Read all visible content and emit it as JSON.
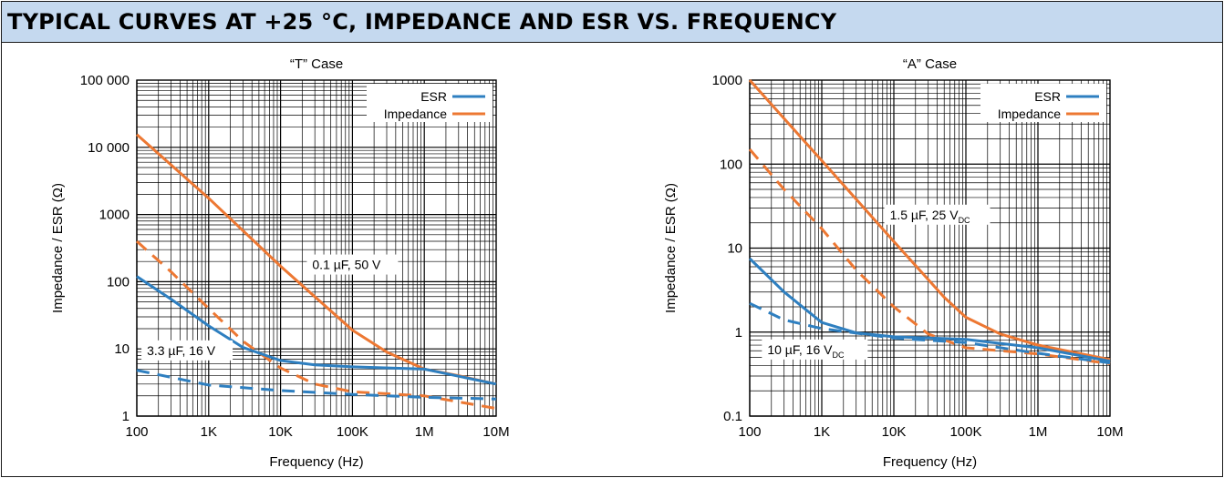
{
  "header": {
    "title": "TYPICAL CURVES AT +25 °C, IMPEDANCE AND ESR VS. FREQUENCY"
  },
  "colors": {
    "esr": "#2e7fc0",
    "impedance": "#ed7833",
    "banner": "#c5d9ef",
    "grid": "#000000"
  },
  "chart_data": [
    {
      "type": "line",
      "title": "“T” Case",
      "xlabel": "Frequency (Hz)",
      "ylabel": "Impedance / ESR (Ω)",
      "xscale": "log",
      "yscale": "log",
      "xlim": [
        100,
        10000000
      ],
      "ylim": [
        1,
        100000
      ],
      "grid": true,
      "legend_position": "top-right",
      "x_ticks": [
        100,
        1000,
        10000,
        100000,
        1000000,
        10000000
      ],
      "x_tick_labels": [
        "100",
        "1K",
        "10K",
        "100K",
        "1M",
        "10M"
      ],
      "y_ticks": [
        1,
        10,
        100,
        1000,
        10000,
        100000
      ],
      "y_tick_labels": [
        "1",
        "10",
        "100",
        "1000",
        "10 000",
        "100 000"
      ],
      "legend": [
        {
          "label": "ESR",
          "color": "#2e7fc0"
        },
        {
          "label": "Impedance",
          "color": "#ed7833"
        }
      ],
      "annotations": [
        {
          "text": "0.1 µF, 50 V",
          "x": 100000,
          "y": 180
        },
        {
          "text": "3.3 µF, 16 V",
          "x": 500,
          "y": 9.5
        }
      ],
      "series": [
        {
          "style": "solid",
          "color": "#ed7833",
          "x": [
            100,
            1000,
            10000,
            100000,
            300000,
            1000000,
            3000000,
            10000000
          ],
          "y": [
            15500,
            1750,
            170,
            19,
            9,
            5,
            4,
            3
          ]
        },
        {
          "style": "solid",
          "color": "#2e7fc0",
          "x": [
            100,
            300,
            1000,
            3000,
            10000,
            30000,
            100000,
            1000000,
            10000000
          ],
          "y": [
            120,
            55,
            22,
            10.5,
            6.7,
            5.8,
            5.4,
            5,
            3
          ]
        },
        {
          "style": "dashed",
          "color": "#ed7833",
          "x": [
            100,
            300,
            1000,
            3000,
            10000,
            30000,
            100000,
            1000000,
            10000000
          ],
          "y": [
            400,
            140,
            40,
            13,
            5.2,
            3,
            2.3,
            2,
            1.3
          ]
        },
        {
          "style": "dashed",
          "color": "#2e7fc0",
          "x": [
            100,
            1000,
            10000,
            100000,
            1000000,
            10000000
          ],
          "y": [
            4.8,
            2.9,
            2.4,
            2.1,
            1.9,
            1.8
          ]
        }
      ]
    },
    {
      "type": "line",
      "title": "“A” Case",
      "xlabel": "Frequency (Hz)",
      "ylabel": "Impedance / ESR (Ω)",
      "xscale": "log",
      "yscale": "log",
      "xlim": [
        100,
        10000000
      ],
      "ylim": [
        0.1,
        1000
      ],
      "grid": true,
      "legend_position": "top-right",
      "x_ticks": [
        100,
        1000,
        10000,
        100000,
        1000000,
        10000000
      ],
      "x_tick_labels": [
        "100",
        "1K",
        "10K",
        "100K",
        "1M",
        "10M"
      ],
      "y_ticks": [
        0.1,
        1,
        10,
        100,
        1000
      ],
      "y_tick_labels": [
        "0.1",
        "1",
        "10",
        "100",
        "1000"
      ],
      "legend": [
        {
          "label": "ESR",
          "color": "#2e7fc0"
        },
        {
          "label": "Impedance",
          "color": "#ed7833"
        }
      ],
      "annotations": [
        {
          "text": "1.5 µF, 25 V",
          "sub": "DC",
          "x": 40000,
          "y": 25
        },
        {
          "text": "10 µF, 16 V",
          "sub": "DC",
          "x": 800,
          "y": 0.62
        }
      ],
      "series": [
        {
          "style": "solid",
          "color": "#ed7833",
          "x": [
            100,
            1000,
            10000,
            50000,
            100000,
            300000,
            1000000,
            10000000
          ],
          "y": [
            1000,
            110,
            12,
            2.6,
            1.5,
            0.95,
            0.7,
            0.47
          ]
        },
        {
          "style": "solid",
          "color": "#2e7fc0",
          "x": [
            100,
            300,
            1000,
            3000,
            10000,
            100000,
            1000000,
            10000000
          ],
          "y": [
            7.5,
            3,
            1.3,
            0.98,
            0.88,
            0.82,
            0.65,
            0.45
          ]
        },
        {
          "style": "dashed",
          "color": "#ed7833",
          "x": [
            100,
            300,
            1000,
            3000,
            10000,
            30000,
            100000,
            1000000,
            10000000
          ],
          "y": [
            150,
            50,
            17,
            5.5,
            2,
            0.95,
            0.65,
            0.55,
            0.42
          ]
        },
        {
          "style": "dashed",
          "color": "#2e7fc0",
          "x": [
            100,
            300,
            1000,
            10000,
            100000,
            1000000,
            10000000
          ],
          "y": [
            2.2,
            1.4,
            1.1,
            0.85,
            0.75,
            0.56,
            0.43
          ]
        }
      ]
    }
  ]
}
